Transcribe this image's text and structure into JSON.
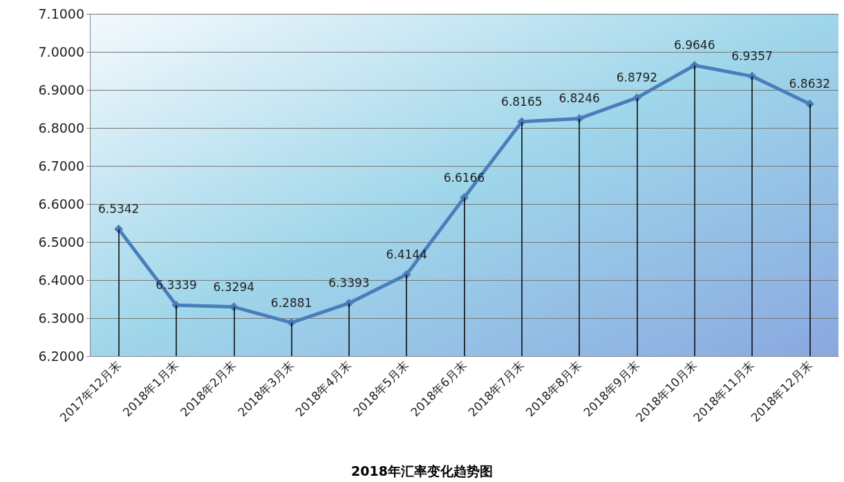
{
  "chart_data": {
    "type": "line",
    "title": "2018年汇率变化趋势图",
    "categories": [
      "2017年12月末",
      "2018年1月末",
      "2018年2月末",
      "2018年3月末",
      "2018年4月末",
      "2018年5月末",
      "2018年6月末",
      "2018年7月末",
      "2018年8月末",
      "2018年9月末",
      "2018年10月末",
      "2018年11月末",
      "2018年12月末"
    ],
    "series": [
      {
        "color": "#4a7ebb",
        "values": [
          6.5342,
          6.3339,
          6.3294,
          6.2881,
          6.3393,
          6.4144,
          6.6166,
          6.8165,
          6.8246,
          6.8792,
          6.9646,
          6.9357,
          6.8632
        ]
      }
    ],
    "ylim": [
      6.2,
      7.1
    ],
    "yticks": [
      {
        "value": 6.2,
        "label": "6.2000"
      },
      {
        "value": 6.3,
        "label": "6.3000"
      },
      {
        "value": 6.4,
        "label": "6.4000"
      },
      {
        "value": 6.5,
        "label": "6.5000"
      },
      {
        "value": 6.6,
        "label": "6.6000"
      },
      {
        "value": 6.7,
        "label": "6.7000"
      },
      {
        "value": 6.8,
        "label": "6.8000"
      },
      {
        "value": 6.9,
        "label": "6.9000"
      },
      {
        "value": 7.0,
        "label": "7.0000"
      },
      {
        "value": 7.1,
        "label": "7.1000"
      }
    ],
    "grid": true,
    "marker": "diamond",
    "line_style": "solid",
    "data_labels": true
  }
}
